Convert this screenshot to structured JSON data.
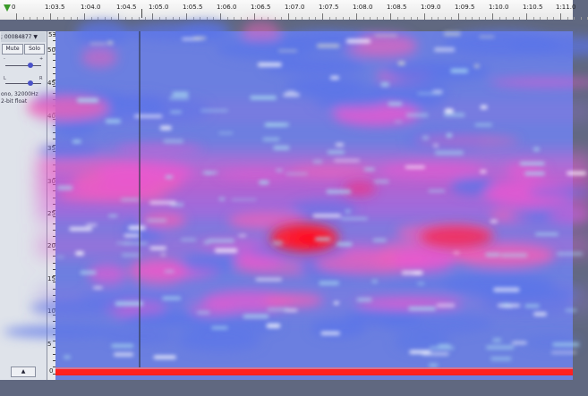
{
  "ruler": {
    "labels": [
      "0",
      "1:03.5",
      "1:04.0",
      "1:04.5",
      "1:05.0",
      "1:05.5",
      "1:06.0",
      "1:06.5",
      "1:07.0",
      "1:07.5",
      "1:08.0",
      "1:08.5",
      "1:09.0",
      "1:09.5",
      "1:10.0",
      "1:10.5",
      "1:11.0"
    ]
  },
  "track": {
    "name": "; 00084877 ▼",
    "mute_label": "Mute",
    "solo_label": "Solo",
    "gain_minus": "-",
    "gain_plus": "+",
    "pan_left": "L",
    "pan_right": "R",
    "info_line1": "ono, 32000Hz",
    "info_line2": "2-bit float",
    "collapse_label": "▲"
  },
  "scale": {
    "top_value": "53",
    "labels": [
      "50",
      "45",
      "40",
      "35",
      "30",
      "25",
      "20",
      "15",
      "10",
      "5",
      "0"
    ]
  },
  "colors": {
    "background_blue": "#6b7fe0",
    "magenta": "#e060d0",
    "hot_red": "#ff2030",
    "light_blue": "#a8d8f0"
  }
}
